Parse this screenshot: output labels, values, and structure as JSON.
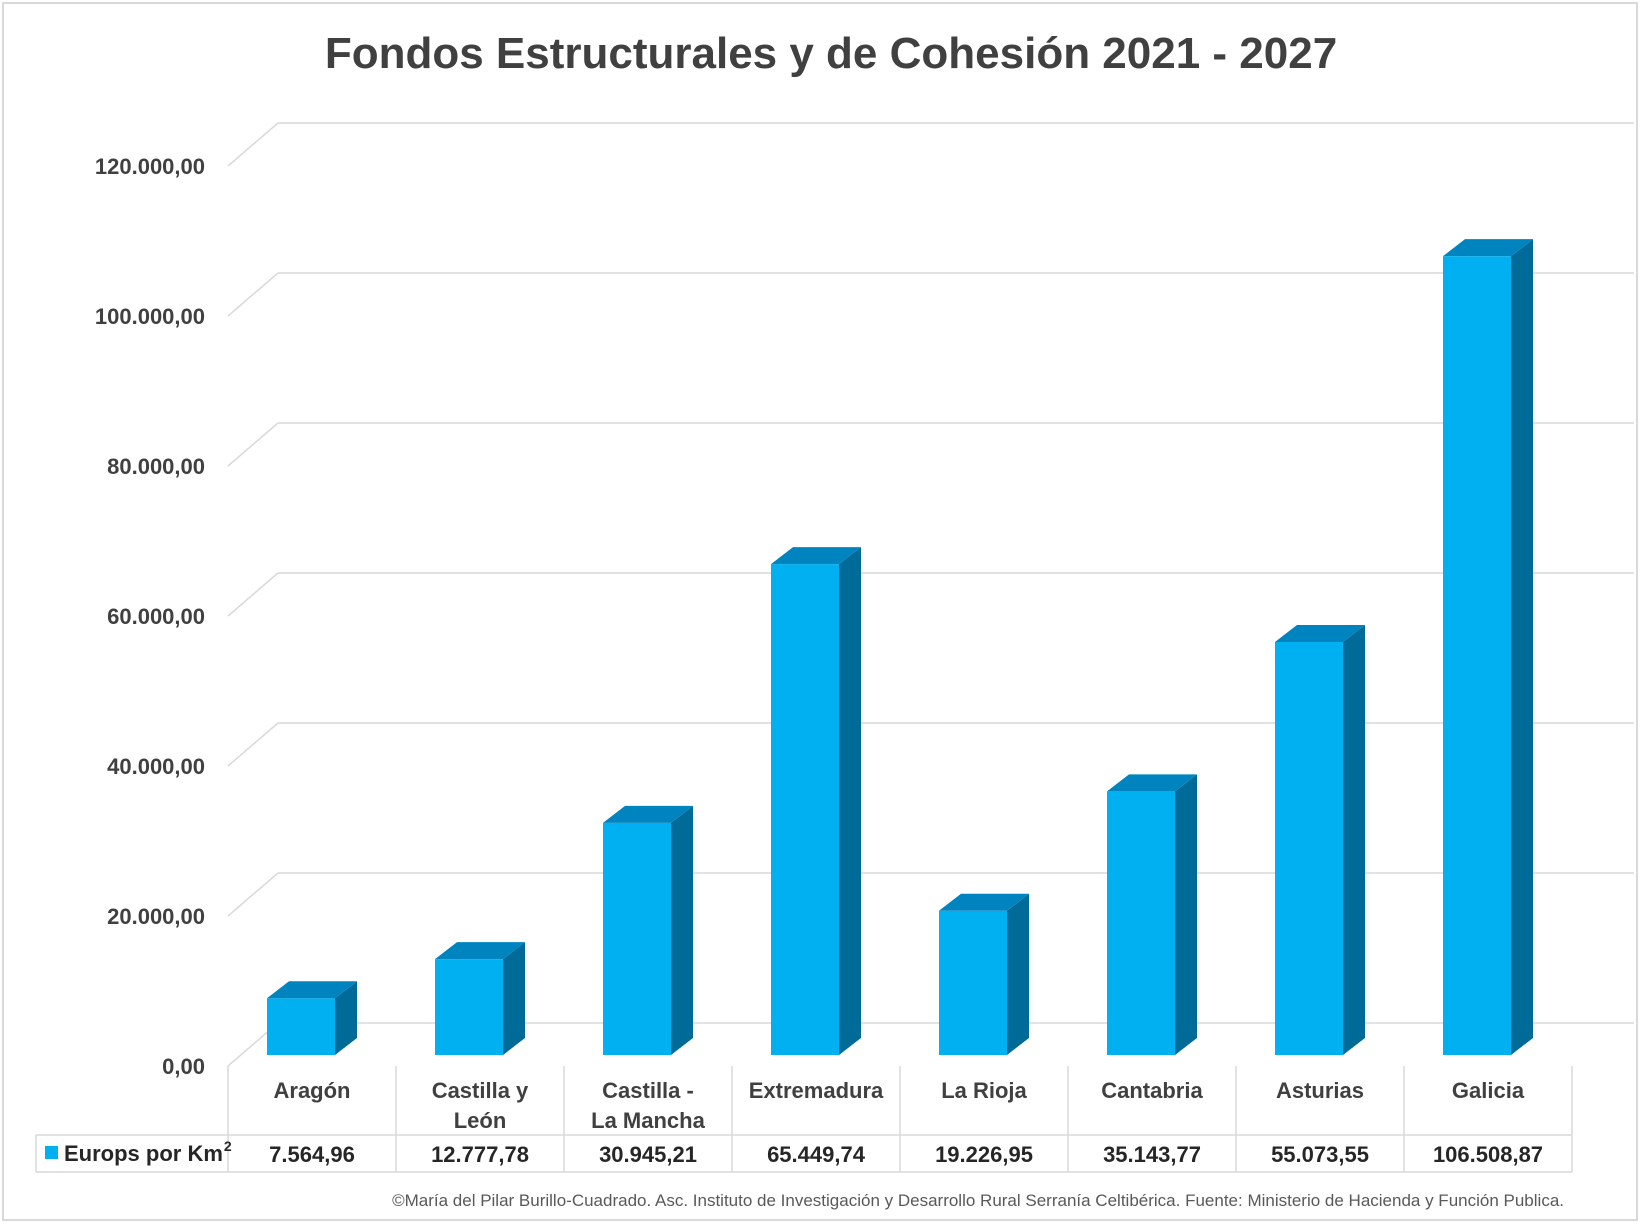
{
  "chart_data": {
    "type": "bar",
    "title": "Fondos Estructurales y de Cohesión 2021 - 2027",
    "categories": [
      [
        "Aragón"
      ],
      [
        "Castilla y",
        "León"
      ],
      [
        "Castilla -",
        "La Mancha"
      ],
      [
        "Extremadura"
      ],
      [
        "La Rioja"
      ],
      [
        "Cantabria"
      ],
      [
        "Asturias"
      ],
      [
        "Galicia"
      ]
    ],
    "series": [
      {
        "name": "Europs por Km",
        "name_superscript": "2",
        "values": [
          7564.96,
          12777.78,
          30945.21,
          65449.74,
          19226.95,
          35143.77,
          55073.55,
          106508.87
        ],
        "value_labels": [
          "7.564,96",
          "12.777,78",
          "30.945,21",
          "65.449,74",
          "19.226,95",
          "35.143,77",
          "55.073,55",
          "106.508,87"
        ],
        "color_front": "#00b0f0",
        "color_top": "#0084c0",
        "color_side": "#006a99"
      }
    ],
    "ylim": [
      0,
      120000
    ],
    "y_ticks": [
      0,
      20000,
      40000,
      60000,
      80000,
      100000,
      120000
    ],
    "y_tick_labels": [
      "0,00",
      "20.000,00",
      "40.000,00",
      "60.000,00",
      "80.000,00",
      "100.000,00",
      "120.000,00"
    ],
    "grid": true,
    "style": "3d-column",
    "data_table": true,
    "legend_placement": "data-table",
    "xlabel": "",
    "ylabel": ""
  },
  "footer": "©María del Pilar Burillo-Cuadrado. Asc. Instituto de Investigación y Desarrollo Rural Serranía Celtibérica. Fuente: Ministerio de Hacienda y Función Publica.",
  "colors": {
    "gridline": "#d9d9d9",
    "text": "#404040",
    "border": "#d9d9d9"
  }
}
